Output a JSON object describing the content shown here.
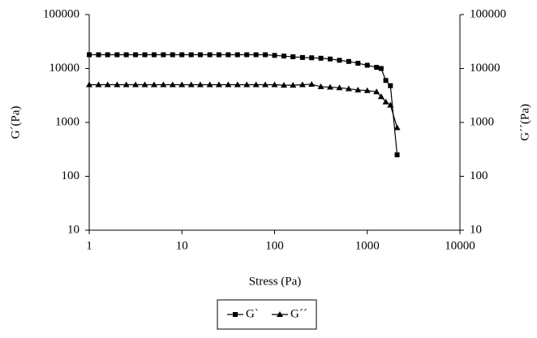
{
  "chart_data": {
    "type": "line",
    "x_label": "Stress (Pa)",
    "y_label": "G´(Pa)",
    "y2_label": "G´´(Pa)",
    "x": [
      1,
      1.26,
      1.58,
      2,
      2.51,
      3.16,
      3.98,
      5.01,
      6.31,
      7.94,
      10,
      12.6,
      15.8,
      20,
      25.1,
      31.6,
      39.8,
      50.1,
      63.1,
      79.4,
      100,
      126,
      158,
      200,
      251,
      316,
      398,
      501,
      631,
      794,
      1000,
      1259,
      1413,
      1585,
      1778,
      2100
    ],
    "series": [
      {
        "name": "G`",
        "color": "#000000",
        "marker": "square",
        "values": [
          18000,
          18000,
          18000,
          18000,
          18000,
          18000,
          18000,
          18000,
          18000,
          18000,
          18000,
          18000,
          18000,
          18000,
          18000,
          18000,
          18000,
          18000,
          18000,
          18000,
          17500,
          17000,
          16500,
          16000,
          15800,
          15500,
          15000,
          14200,
          13500,
          12500,
          11500,
          10500,
          10000,
          6000,
          4800,
          250
        ]
      },
      {
        "name": "G´´",
        "color": "#000000",
        "marker": "triangle",
        "axis": "y2",
        "values": [
          5000,
          5000,
          5000,
          5000,
          5000,
          5000,
          5000,
          5000,
          5000,
          5000,
          5000,
          5000,
          5000,
          5000,
          5000,
          5000,
          5000,
          5000,
          5000,
          5000,
          5000,
          4900,
          4900,
          5000,
          5100,
          4600,
          4500,
          4400,
          4200,
          4000,
          3900,
          3700,
          3000,
          2400,
          2100,
          800
        ]
      }
    ],
    "x_scale": "log",
    "y_scale": "log",
    "xlim": [
      1,
      10000
    ],
    "xticks": [
      1,
      10,
      100,
      1000,
      10000
    ],
    "ylim": [
      10,
      100000
    ],
    "yticks": [
      10,
      100,
      1000,
      10000,
      100000
    ],
    "y2lim": [
      10,
      100000
    ],
    "y2ticks": [
      10,
      100,
      1000,
      10000,
      100000
    ],
    "grid": false,
    "legend": "bottom"
  }
}
